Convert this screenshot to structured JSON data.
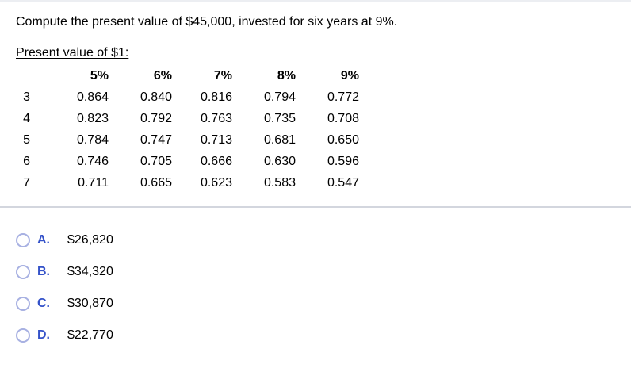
{
  "question": {
    "text": "Compute the present value of $45,000, invested for six years at 9%."
  },
  "pv_table": {
    "heading": "Present value of $1:",
    "column_headers": [
      "5%",
      "6%",
      "7%",
      "8%",
      "9%"
    ],
    "rows": [
      {
        "period": "3",
        "factors": [
          "0.864",
          "0.840",
          "0.816",
          "0.794",
          "0.772"
        ]
      },
      {
        "period": "4",
        "factors": [
          "0.823",
          "0.792",
          "0.763",
          "0.735",
          "0.708"
        ]
      },
      {
        "period": "5",
        "factors": [
          "0.784",
          "0.747",
          "0.713",
          "0.681",
          "0.650"
        ]
      },
      {
        "period": "6",
        "factors": [
          "0.746",
          "0.705",
          "0.666",
          "0.630",
          "0.596"
        ]
      },
      {
        "period": "7",
        "factors": [
          "0.711",
          "0.665",
          "0.623",
          "0.583",
          "0.547"
        ]
      }
    ]
  },
  "options": [
    {
      "letter": "A.",
      "value": "$26,820"
    },
    {
      "letter": "B.",
      "value": "$34,320"
    },
    {
      "letter": "C.",
      "value": "$30,870"
    },
    {
      "letter": "D.",
      "value": "$22,770"
    }
  ],
  "colors": {
    "option_letter": "#3452c9",
    "radio_border": "#a8b1e2",
    "divider": "#d3d6de"
  }
}
